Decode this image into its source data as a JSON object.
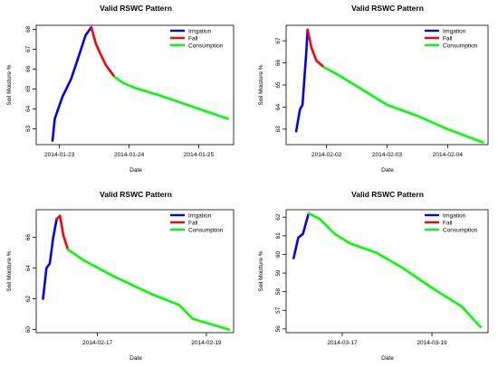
{
  "chart_data": [
    {
      "type": "line",
      "title": "Valid RSWC Pattern",
      "xlabel": "Date",
      "ylabel": "Soil Moisture %",
      "xlim": [
        "2014-01-22 16:00",
        "2014-01-25 12:00"
      ],
      "ylim": [
        62.2,
        68.2
      ],
      "xticks": [
        "2014-01-23",
        "2014-01-24",
        "2014-01-25"
      ],
      "yticks": [
        63,
        64,
        65,
        66,
        67,
        68
      ],
      "legend_position": "top-right",
      "series": [
        {
          "name": "Irrigation",
          "color": "#0000ff",
          "x": [
            "2014-01-22 21:36",
            "2014-01-22 22:24",
            "2014-01-23 01:00",
            "2014-01-23 04:00",
            "2014-01-23 07:00",
            "2014-01-23 09:00",
            "2014-01-23 11:00"
          ],
          "y": [
            62.4,
            63.5,
            64.6,
            65.5,
            66.8,
            67.7,
            68.1
          ]
        },
        {
          "name": "Fall",
          "color": "#ff0000",
          "x": [
            "2014-01-23 11:00",
            "2014-01-23 12:30",
            "2014-01-23 14:00",
            "2014-01-23 16:00",
            "2014-01-23 19:00"
          ],
          "y": [
            68.1,
            67.3,
            66.8,
            66.2,
            65.6
          ]
        },
        {
          "name": "Consumption",
          "color": "#00ff00",
          "x": [
            "2014-01-23 19:00",
            "2014-01-23 22:00",
            "2014-01-24 02:00",
            "2014-01-24 10:00",
            "2014-01-24 18:00",
            "2014-01-25 02:00",
            "2014-01-25 10:00"
          ],
          "y": [
            65.6,
            65.3,
            65.05,
            64.7,
            64.3,
            63.9,
            63.5
          ]
        }
      ]
    },
    {
      "type": "line",
      "title": "Valid RSWC Pattern",
      "xlabel": "Date",
      "ylabel": "Soil Moisture %",
      "xlim": [
        "2014-02-01 08:00",
        "2014-02-04 16:00"
      ],
      "ylim": [
        62.3,
        67.7
      ],
      "xticks": [
        "2014-02-02",
        "2014-02-03",
        "2014-02-04"
      ],
      "yticks": [
        63,
        64,
        65,
        66,
        67
      ],
      "legend_position": "top-right",
      "series": [
        {
          "name": "Irrigation",
          "color": "#0000ff",
          "x": [
            "2014-02-01 12:00",
            "2014-02-01 13:30",
            "2014-02-01 14:30",
            "2014-02-01 16:00",
            "2014-02-01 16:30"
          ],
          "y": [
            62.9,
            63.9,
            64.1,
            66.5,
            67.5
          ]
        },
        {
          "name": "Fall",
          "color": "#ff0000",
          "x": [
            "2014-02-01 16:30",
            "2014-02-01 18:00",
            "2014-02-01 20:00",
            "2014-02-01 23:00"
          ],
          "y": [
            67.5,
            66.7,
            66.1,
            65.8
          ]
        },
        {
          "name": "Consumption",
          "color": "#00ff00",
          "x": [
            "2014-02-01 23:00",
            "2014-02-02 04:00",
            "2014-02-02 14:00",
            "2014-02-03 00:00",
            "2014-02-03 12:00",
            "2014-02-04 00:00",
            "2014-02-04 14:00"
          ],
          "y": [
            65.8,
            65.5,
            64.8,
            64.1,
            63.6,
            63.0,
            62.4
          ]
        }
      ]
    },
    {
      "type": "line",
      "title": "Valid RSWC Pattern",
      "xlabel": "Date",
      "ylabel": "Soil Moisture %",
      "xlim": [
        "2014-02-15 21:00",
        "2014-02-19 12:00"
      ],
      "ylim": [
        59.8,
        67.8
      ],
      "xticks": [
        "2014-02-17",
        "2014-02-19"
      ],
      "yticks": [
        60,
        62,
        64,
        66
      ],
      "legend_position": "top-right",
      "series": [
        {
          "name": "Irrigation",
          "color": "#0000ff",
          "x": [
            "2014-02-16 00:00",
            "2014-02-16 01:30",
            "2014-02-16 03:00",
            "2014-02-16 04:30",
            "2014-02-16 06:00"
          ],
          "y": [
            62.0,
            64.0,
            64.3,
            66.0,
            67.2
          ]
        },
        {
          "name": "Fall",
          "color": "#ff0000",
          "x": [
            "2014-02-16 06:00",
            "2014-02-16 07:30",
            "2014-02-16 09:00",
            "2014-02-16 11:00"
          ],
          "y": [
            67.2,
            67.4,
            66.1,
            65.2
          ]
        },
        {
          "name": "Consumption",
          "color": "#00ff00",
          "x": [
            "2014-02-16 11:00",
            "2014-02-16 18:00",
            "2014-02-17 08:00",
            "2014-02-18 00:00",
            "2014-02-18 12:00",
            "2014-02-18 18:00",
            "2014-02-19 10:00"
          ],
          "y": [
            65.2,
            64.5,
            63.4,
            62.3,
            61.6,
            60.7,
            60.0
          ]
        }
      ]
    },
    {
      "type": "line",
      "title": "Valid RSWC Pattern",
      "xlabel": "Date",
      "ylabel": "Soil Moisture %",
      "xlim": [
        "2014-03-15 18:00",
        "2014-03-20 06:00"
      ],
      "ylim": [
        55.8,
        62.4
      ],
      "xticks": [
        "2014-03-17",
        "2014-03-19"
      ],
      "yticks": [
        56,
        57,
        58,
        59,
        60,
        61,
        62
      ],
      "legend_position": "top-right",
      "series": [
        {
          "name": "Irrigation",
          "color": "#0000ff",
          "x": [
            "2014-03-15 22:00",
            "2014-03-16 00:30",
            "2014-03-16 03:00",
            "2014-03-16 06:00"
          ],
          "y": [
            59.8,
            60.9,
            61.1,
            62.2
          ]
        },
        {
          "name": "Fall",
          "color": "#ff0000",
          "x": [],
          "y": []
        },
        {
          "name": "Consumption",
          "color": "#00ff00",
          "x": [
            "2014-03-16 06:00",
            "2014-03-16 12:00",
            "2014-03-16 20:00",
            "2014-03-17 04:00",
            "2014-03-17 18:00",
            "2014-03-18 08:00",
            "2014-03-19 00:00",
            "2014-03-19 16:00",
            "2014-03-20 02:00"
          ],
          "y": [
            62.2,
            61.9,
            61.1,
            60.6,
            60.1,
            59.3,
            58.2,
            57.2,
            56.1
          ]
        }
      ]
    }
  ]
}
